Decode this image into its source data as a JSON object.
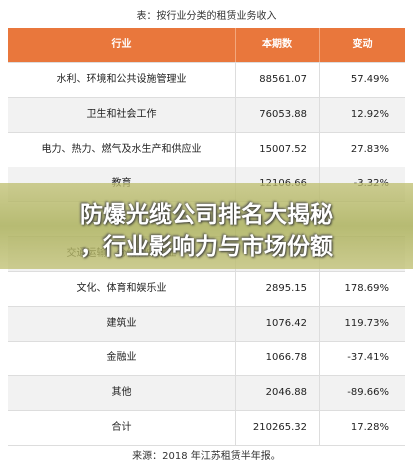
{
  "caption": "表：按行业分类的租赁业务收入",
  "table": {
    "header": [
      "行业",
      "本期数",
      "变动"
    ],
    "rows": [
      [
        "水利、环境和公共设施管理业",
        "88561.07",
        "57.49%"
      ],
      [
        "卫生和社会工作",
        "76053.88",
        "12.92%"
      ],
      [
        "电力、热力、燃气及水生产和供应业",
        "15007.52",
        "27.83%"
      ],
      [
        "教育",
        "12106.66",
        "-3.32%"
      ],
      [
        null,
        null,
        null
      ],
      [
        "交通运输、仓储和邮政业",
        null,
        null
      ],
      [
        "文化、体育和娱乐业",
        "2895.15",
        "178.69%"
      ],
      [
        "建筑业",
        "1076.42",
        "119.73%"
      ],
      [
        "金融业",
        "1066.78",
        "-37.41%"
      ],
      [
        "其他",
        "2046.88",
        "-89.66%"
      ],
      [
        "合计",
        "210265.32",
        "17.28%"
      ]
    ]
  },
  "source": "来源：2018 年江苏租赁半年报。",
  "banner": {
    "lines": [
      "防爆光缆公司排名大揭秘",
      "，行业影响力与市场份额"
    ]
  }
}
